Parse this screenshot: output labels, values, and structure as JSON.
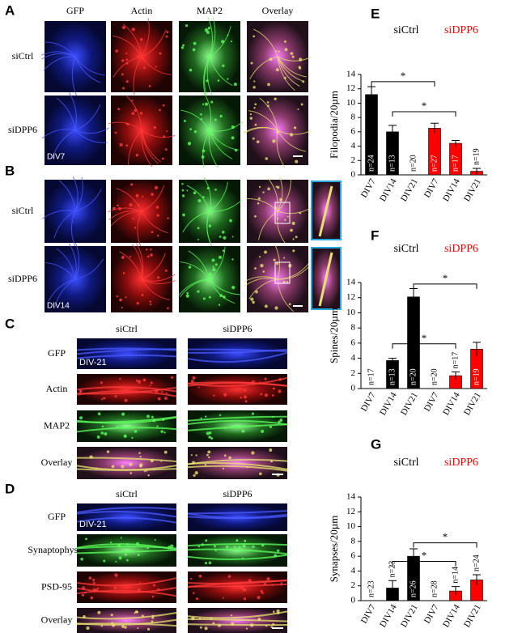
{
  "panels": {
    "A": {
      "letter": "A",
      "columns": [
        "GFP",
        "Actin",
        "MAP2",
        "Overlay"
      ],
      "rows": [
        "siCtrl",
        "siDPP6"
      ],
      "stamp": "DIV7"
    },
    "B": {
      "letter": "B",
      "rows": [
        "siCtrl",
        "siDPP6"
      ],
      "stamp": "DIV14"
    },
    "C": {
      "letter": "C",
      "columns": [
        "siCtrl",
        "siDPP6"
      ],
      "rows": [
        "GFP",
        "Actin",
        "MAP2",
        "Overlay"
      ],
      "stamp": "DIV-21"
    },
    "D": {
      "letter": "D",
      "columns": [
        "siCtrl",
        "siDPP6"
      ],
      "rows": [
        "GFP",
        "Synaptophysin",
        "PSD-95",
        "Overlay"
      ],
      "stamp": "DIV-21"
    }
  },
  "chart_data": [
    {
      "type": "bar",
      "letter": "E",
      "ylabel": "Filopodia/20µm",
      "legend": [
        {
          "name": "siCtrl",
          "color": "#000000"
        },
        {
          "name": "siDPP6",
          "color": "#ff0000"
        }
      ],
      "categories": [
        "DIV7",
        "DIV14",
        "DIV21",
        "DIV7",
        "DIV14",
        "DIV21"
      ],
      "values": [
        11.2,
        6.0,
        0,
        6.5,
        4.4,
        0.5
      ],
      "errors": [
        1.1,
        0.9,
        0,
        0.7,
        0.4,
        0.4
      ],
      "colors": [
        "#000000",
        "#000000",
        "#000000",
        "#ff0000",
        "#ff0000",
        "#ff0000"
      ],
      "n_labels": [
        "n=24",
        "n=13",
        "n=20",
        "n=27",
        "n=17",
        "n=19"
      ],
      "brackets": [
        {
          "label": "*",
          "between": [
            0,
            3
          ],
          "y": 13
        },
        {
          "label": "*",
          "between": [
            1,
            4
          ],
          "y": 8.8
        }
      ],
      "ylim": [
        0,
        14
      ],
      "yticks": [
        0,
        2,
        4,
        6,
        8,
        10,
        12,
        14
      ]
    },
    {
      "type": "bar",
      "letter": "F",
      "ylabel": "Spines/20µm",
      "legend": [
        {
          "name": "siCtrl",
          "color": "#000000"
        },
        {
          "name": "siDPP6",
          "color": "#ff0000"
        }
      ],
      "categories": [
        "DIV7",
        "DIV14",
        "DIV21",
        "DIV7",
        "DIV14",
        "DIV21"
      ],
      "values": [
        0,
        3.7,
        12.1,
        0,
        1.7,
        5.2
      ],
      "errors": [
        0,
        0.3,
        1.1,
        0,
        0.5,
        0.9
      ],
      "colors": [
        "#000000",
        "#000000",
        "#000000",
        "#ff0000",
        "#ff0000",
        "#ff0000"
      ],
      "n_labels": [
        "n=17",
        "n=13",
        "n=20",
        "n=20",
        "n=17",
        "n=19"
      ],
      "brackets": [
        {
          "label": "*",
          "between": [
            2,
            5
          ],
          "y": 13.8
        },
        {
          "label": "*",
          "between": [
            1,
            4
          ],
          "y": 5.9
        }
      ],
      "ylim": [
        0,
        14
      ],
      "yticks": [
        0,
        2,
        4,
        6,
        8,
        10,
        12,
        14
      ]
    },
    {
      "type": "bar",
      "letter": "G",
      "ylabel": "Synapses/20µm",
      "legend": [
        {
          "name": "siCtrl",
          "color": "#000000"
        },
        {
          "name": "siDPP6",
          "color": "#ff0000"
        }
      ],
      "categories": [
        "DIV7",
        "DIV14",
        "DIV21",
        "DIV7",
        "DIV14",
        "DIV21"
      ],
      "values": [
        0,
        1.7,
        6.0,
        0,
        1.3,
        2.8
      ],
      "errors": [
        0,
        1.0,
        1.0,
        0,
        0.6,
        0.7
      ],
      "colors": [
        "#000000",
        "#000000",
        "#000000",
        "#ff0000",
        "#ff0000",
        "#ff0000"
      ],
      "n_labels": [
        "n=23",
        "n=23",
        "n=26",
        "n=28",
        "n=14",
        "n=24"
      ],
      "brackets": [
        {
          "label": "*",
          "between": [
            2,
            5
          ],
          "y": 7.8
        },
        {
          "label": "*",
          "between": [
            1,
            4
          ],
          "y": 5.3
        }
      ],
      "ylim": [
        0,
        14
      ],
      "yticks": [
        0,
        2,
        4,
        6,
        8,
        10,
        12,
        14
      ]
    }
  ]
}
